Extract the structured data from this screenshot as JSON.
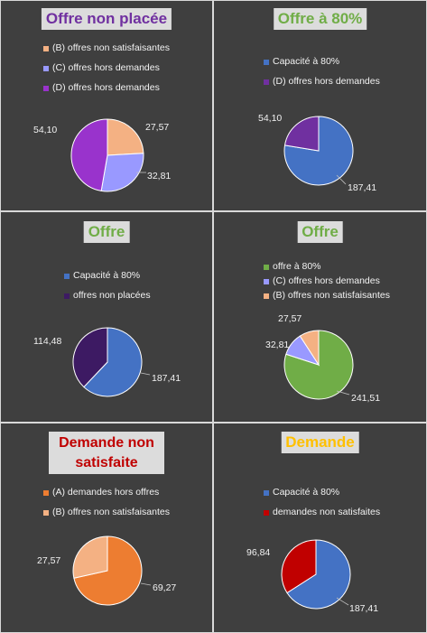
{
  "chart_data": [
    {
      "type": "pie",
      "title": "Offre non placée",
      "title_color": "#7030a0",
      "categories": [
        "(B) offres non satisfaisantes",
        "(C) offres hors demandes",
        "(D) offres hors demandes"
      ],
      "values": [
        27.57,
        32.81,
        54.1
      ],
      "value_labels": [
        "27,57",
        "32,81",
        "54,10"
      ],
      "colors": [
        "#f4b183",
        "#9999ff",
        "#9933cc"
      ]
    },
    {
      "type": "pie",
      "title": "Offre à 80%",
      "title_color": "#70ad47",
      "categories": [
        "Capacité à 80%",
        "(D) offres hors demandes"
      ],
      "values": [
        187.41,
        54.1
      ],
      "value_labels": [
        "187,41",
        "54,10"
      ],
      "colors": [
        "#4472c4",
        "#7030a0"
      ]
    },
    {
      "type": "pie",
      "title": "Offre",
      "title_color": "#70ad47",
      "categories": [
        "Capacité à 80%",
        "offres non placées"
      ],
      "values": [
        187.41,
        114.48
      ],
      "value_labels": [
        "187,41",
        "114,48"
      ],
      "colors": [
        "#4472c4",
        "#3d1a63"
      ]
    },
    {
      "type": "pie",
      "title": "Offre",
      "title_color": "#70ad47",
      "categories": [
        "offre à 80%",
        "(C) offres hors demandes",
        "(B) offres non satisfaisantes"
      ],
      "values": [
        241.51,
        32.81,
        27.57
      ],
      "value_labels": [
        "241,51",
        "32,81",
        "27,57"
      ],
      "colors": [
        "#70ad47",
        "#9999ff",
        "#f4b183"
      ]
    },
    {
      "type": "pie",
      "title": "Demande non satisfaite",
      "title_color": "#c00000",
      "categories": [
        "(A) demandes hors offres",
        "(B) offres non satisfaisantes"
      ],
      "values": [
        69.27,
        27.57
      ],
      "value_labels": [
        "69,27",
        "27,57"
      ],
      "colors": [
        "#ed7d31",
        "#f4b183"
      ]
    },
    {
      "type": "pie",
      "title": "Demande",
      "title_color": "#ffc000",
      "categories": [
        "Capacité à 80%",
        "demandes non satisfaites"
      ],
      "values": [
        187.41,
        96.84
      ],
      "value_labels": [
        "187,41",
        "96,84"
      ],
      "colors": [
        "#4472c4",
        "#c00000"
      ]
    }
  ]
}
